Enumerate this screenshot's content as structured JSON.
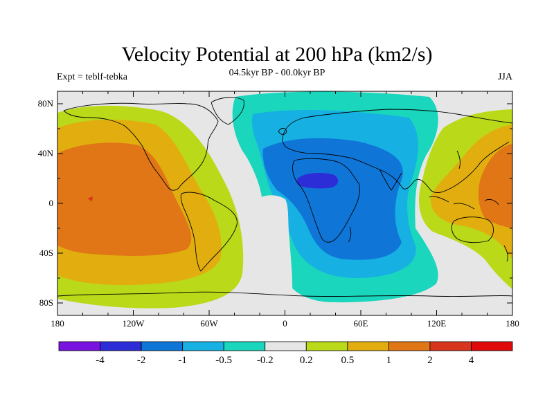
{
  "title": "Velocity Potential at 200 hPa (km2/s)",
  "subtitle": "04.5kyr BP - 00.0kyr BP",
  "left_string": "Expt = teblf-tebka",
  "right_string": "JJA",
  "colors": {
    "background_land": "#e6e6e6",
    "coastline": "#000000",
    "frame": "#000000"
  },
  "map_data": {
    "projection": "cylindrical-equidistant",
    "lon_range": [
      -180,
      180
    ],
    "lat_range": [
      -90,
      90
    ],
    "lon_ticks": [
      {
        "value": -180,
        "label": "180"
      },
      {
        "value": -120,
        "label": "120W"
      },
      {
        "value": -60,
        "label": "60W"
      },
      {
        "value": 0,
        "label": "0"
      },
      {
        "value": 60,
        "label": "60E"
      },
      {
        "value": 120,
        "label": "120E"
      },
      {
        "value": 180,
        "label": "180"
      }
    ],
    "lat_ticks": [
      {
        "value": 80,
        "label": "80N"
      },
      {
        "value": 40,
        "label": "40N"
      },
      {
        "value": 0,
        "label": "0"
      },
      {
        "value": -40,
        "label": "40S"
      },
      {
        "value": -80,
        "label": "80S"
      }
    ]
  },
  "colorbar": {
    "boundaries": [
      "-4",
      "-2",
      "-1",
      "-0.5",
      "-0.2",
      "0.2",
      "0.5",
      "1",
      "2",
      "4"
    ],
    "colors": [
      "#7a13e0",
      "#2d2dd8",
      "#0f76d8",
      "#17b0e2",
      "#19d6bd",
      "#e6e6e6",
      "#b9d919",
      "#e2ae0f",
      "#e07616",
      "#d8361c",
      "#e00a0a"
    ]
  }
}
